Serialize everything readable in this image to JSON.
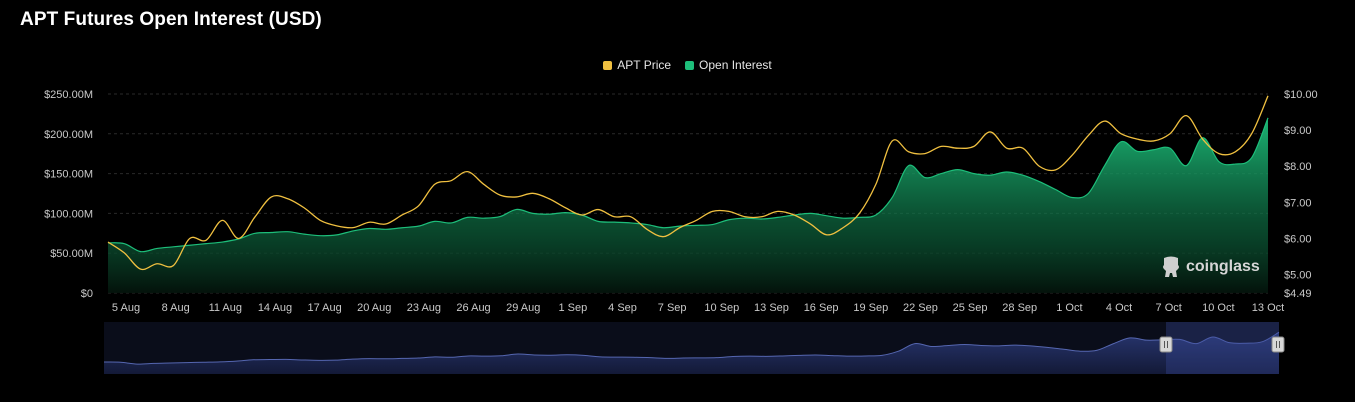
{
  "title": "APT Futures Open Interest (USD)",
  "watermark": "coinglass",
  "colors": {
    "price": "#F0C040",
    "oi": "#1DBE7A",
    "background": "#000000",
    "navigator": "#2B3A78"
  },
  "legend": [
    {
      "label": "APT Price",
      "color": "#F0C040",
      "icon": "square"
    },
    {
      "label": "Open Interest",
      "color": "#1DBE7A",
      "icon": "square"
    }
  ],
  "chart_data": {
    "type": "area",
    "title": "APT Futures Open Interest (USD)",
    "grid": true,
    "legend_position": "top-center",
    "x_tick_labels": [
      "5 Aug",
      "8 Aug",
      "11 Aug",
      "14 Aug",
      "17 Aug",
      "20 Aug",
      "23 Aug",
      "26 Aug",
      "29 Aug",
      "1 Sep",
      "4 Sep",
      "7 Sep",
      "10 Sep",
      "13 Sep",
      "16 Sep",
      "19 Sep",
      "22 Sep",
      "25 Sep",
      "28 Sep",
      "1 Oct",
      "4 Oct",
      "7 Oct",
      "10 Oct",
      "13 Oct"
    ],
    "y_left": {
      "ticks": [
        "$0",
        "$50.00M",
        "$100.00M",
        "$150.00M",
        "$200.00M",
        "$250.00M"
      ],
      "range": [
        0,
        250
      ]
    },
    "y_right": {
      "ticks": [
        "$4.49",
        "$5.00",
        "$6.00",
        "$7.00",
        "$8.00",
        "$9.00",
        "$10.00"
      ],
      "range": [
        4.49,
        10.0
      ]
    },
    "series": [
      {
        "name": "Open Interest",
        "axis": "left",
        "style": "area",
        "values": [
          63,
          62,
          52,
          56,
          58,
          60,
          62,
          64,
          68,
          75,
          76,
          77,
          74,
          72,
          73,
          78,
          81,
          80,
          82,
          84,
          90,
          88,
          95,
          94,
          96,
          105,
          100,
          99,
          101,
          98,
          90,
          89,
          88,
          86,
          82,
          84,
          85,
          86,
          92,
          94,
          93,
          95,
          98,
          100,
          97,
          94,
          95,
          98,
          120,
          160,
          145,
          150,
          155,
          150,
          148,
          152,
          148,
          140,
          130,
          120,
          125,
          160,
          190,
          178,
          180,
          182,
          160,
          195,
          165,
          162,
          170,
          220
        ]
      },
      {
        "name": "APT Price",
        "axis": "right",
        "style": "line",
        "values": [
          5.9,
          5.6,
          5.15,
          5.3,
          5.25,
          6.0,
          5.95,
          6.5,
          6.0,
          6.6,
          7.15,
          7.1,
          6.85,
          6.5,
          6.35,
          6.3,
          6.45,
          6.4,
          6.65,
          6.9,
          7.5,
          7.6,
          7.85,
          7.5,
          7.2,
          7.15,
          7.25,
          7.1,
          6.85,
          6.65,
          6.8,
          6.6,
          6.6,
          6.25,
          6.05,
          6.3,
          6.5,
          6.75,
          6.75,
          6.6,
          6.6,
          6.75,
          6.65,
          6.4,
          6.1,
          6.3,
          6.7,
          7.5,
          8.7,
          8.4,
          8.35,
          8.55,
          8.5,
          8.55,
          8.95,
          8.5,
          8.5,
          8.0,
          7.9,
          8.3,
          8.85,
          9.25,
          8.9,
          8.75,
          8.7,
          8.9,
          9.4,
          8.75,
          8.35,
          8.4,
          8.9,
          9.95
        ]
      }
    ]
  }
}
